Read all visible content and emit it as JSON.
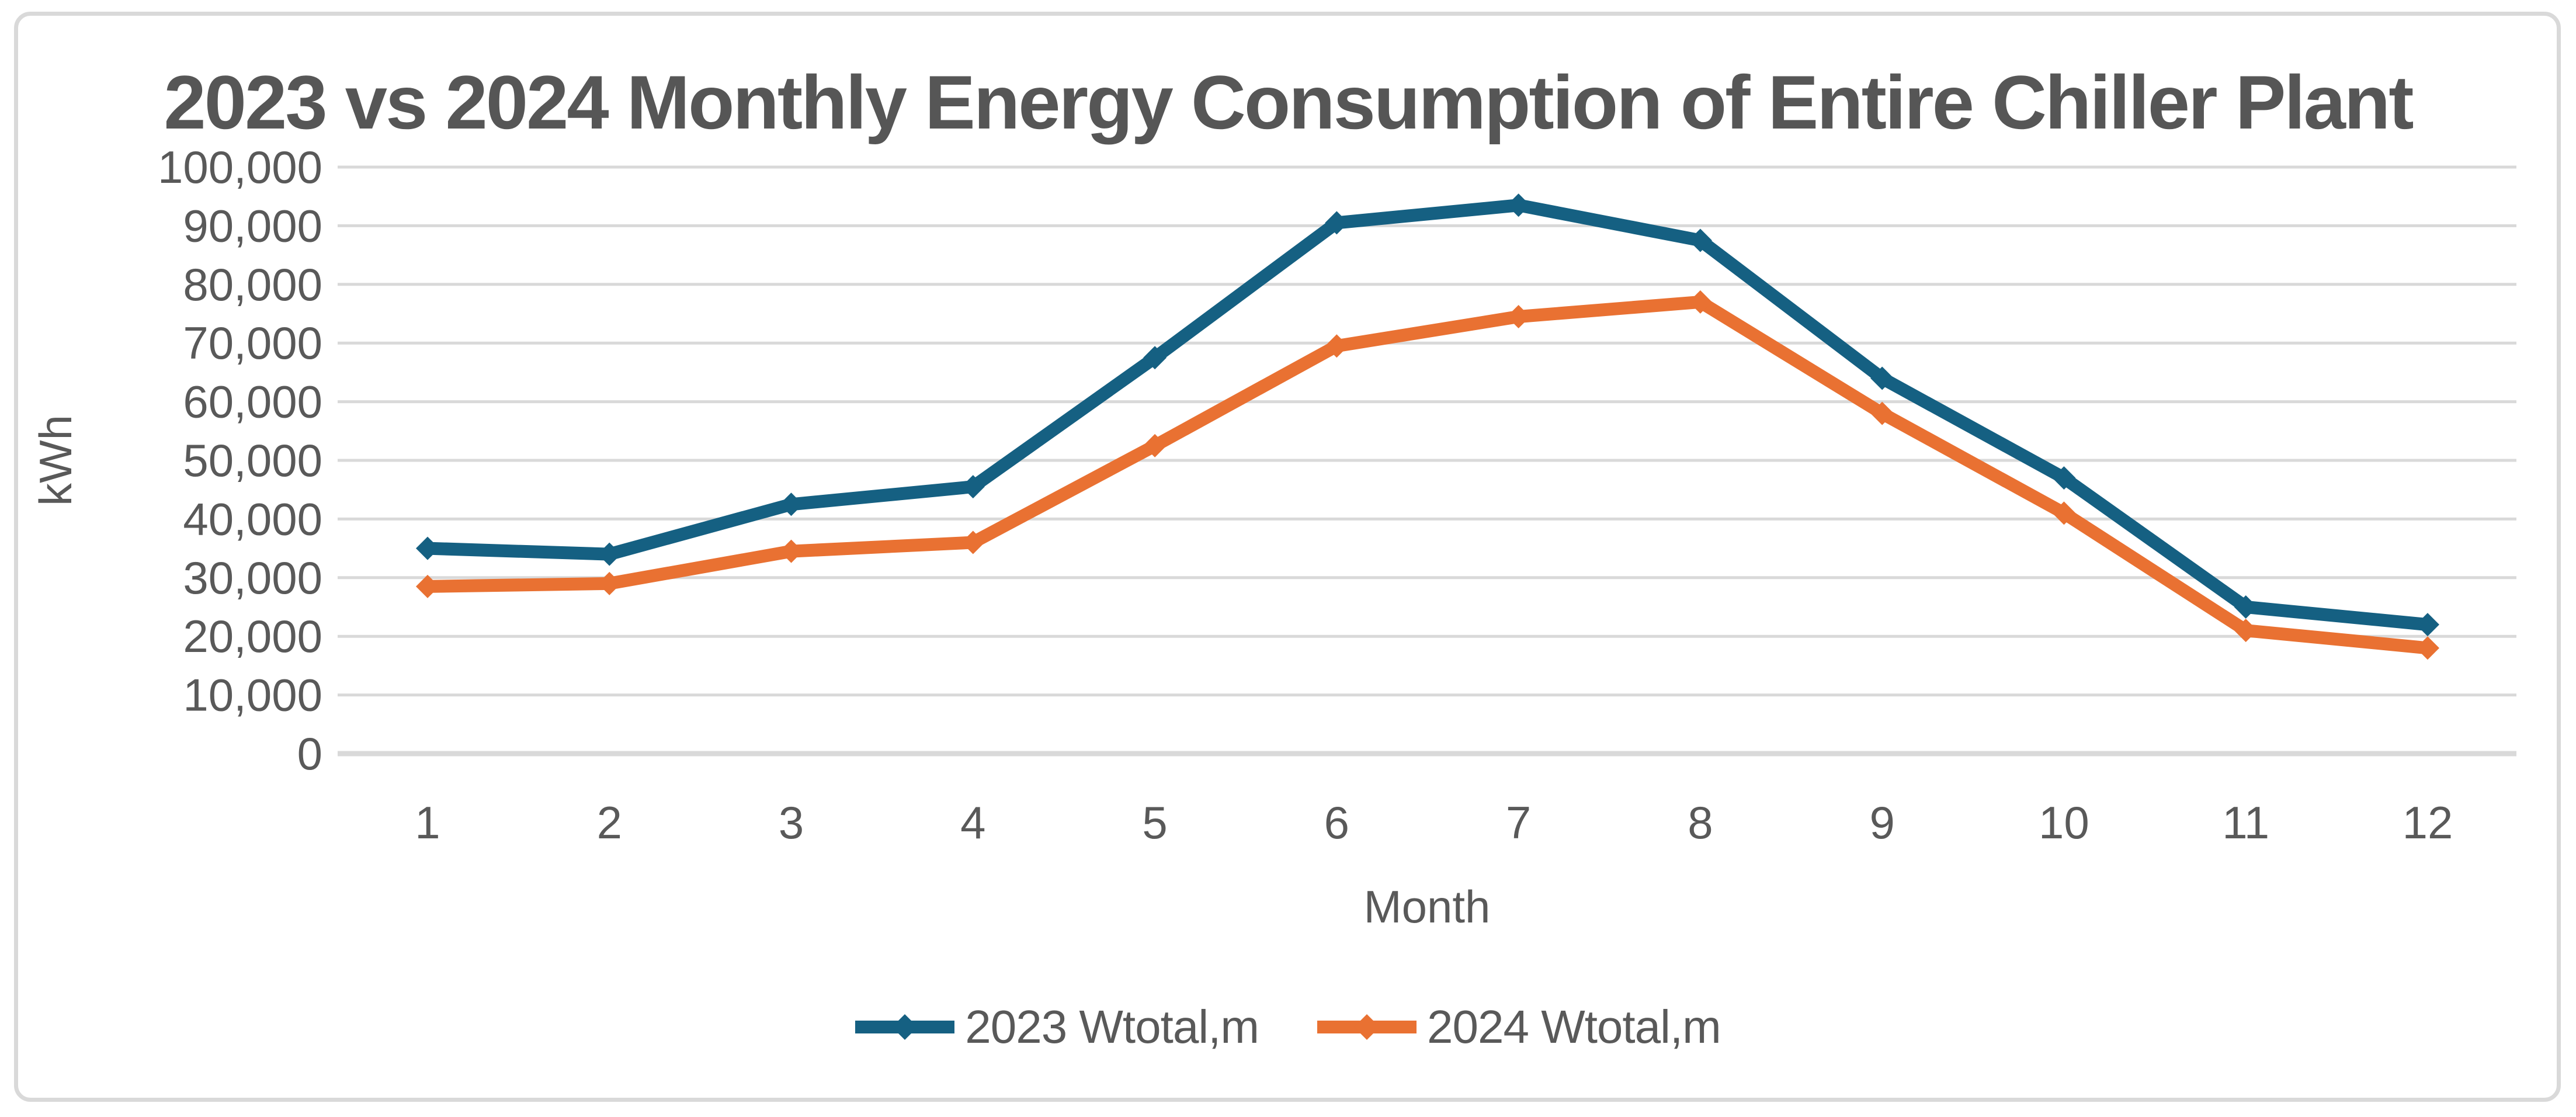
{
  "chart_data": {
    "type": "line",
    "title": "2023 vs 2024 Monthly Energy Consumption of Entire Chiller Plant",
    "x_axis": {
      "title": "Month",
      "categories": [
        "1",
        "2",
        "3",
        "4",
        "5",
        "6",
        "7",
        "8",
        "9",
        "10",
        "11",
        "12"
      ]
    },
    "y_axis": {
      "title": "kWh",
      "min": 0,
      "max": 100000,
      "tick_step": 10000,
      "tick_labels": [
        "0",
        "10,000",
        "20,000",
        "30,000",
        "40,000",
        "50,000",
        "60,000",
        "70,000",
        "80,000",
        "90,000",
        "100,000"
      ]
    },
    "series": [
      {
        "name": "2023 Wtotal,m",
        "color": "#156082",
        "marker": "diamond",
        "values": [
          35000,
          34000,
          42500,
          45500,
          67500,
          90500,
          93500,
          87500,
          64000,
          47000,
          25000,
          22000
        ]
      },
      {
        "name": "2024 Wtotal,m",
        "color": "#E97132",
        "marker": "diamond",
        "values": [
          28500,
          29000,
          34500,
          36000,
          52500,
          69500,
          74500,
          77000,
          58000,
          41000,
          21000,
          18000
        ]
      }
    ],
    "grid": true,
    "gridline_color": "#D9D9D9",
    "axis_text_color": "#595959",
    "legend_position": "bottom",
    "ylim": [
      0,
      100000
    ]
  }
}
